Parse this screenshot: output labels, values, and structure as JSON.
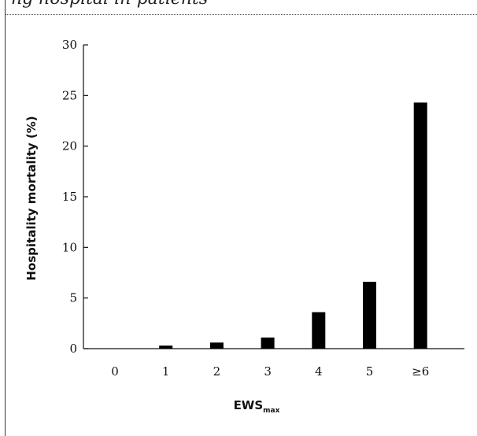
{
  "caption": {
    "fragment": "ng hospital in-patients"
  },
  "chart_data": {
    "type": "bar",
    "categories": [
      "0",
      "1",
      "2",
      "3",
      "4",
      "5",
      "≥6"
    ],
    "values": [
      0,
      0.3,
      0.6,
      1.1,
      3.6,
      6.6,
      24.3
    ],
    "ylabel": "Hospitality mortality (%)",
    "xlabel": {
      "base": "EWS",
      "subscript": "max"
    },
    "yticks": [
      0,
      5,
      10,
      15,
      20,
      25,
      30
    ],
    "ylim": [
      0,
      30
    ],
    "grid": false,
    "bar_color": "#000000"
  }
}
